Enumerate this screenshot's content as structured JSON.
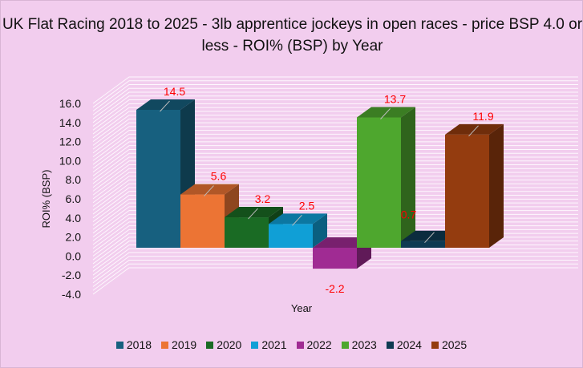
{
  "chart_data": {
    "type": "bar",
    "title": "UK Flat Racing 2018 to 2025 - 3lb apprentice jockeys in open races - price BSP 4.0 or less - ROI% (BSP) by Year",
    "xlabel": "Year",
    "ylabel": "ROI% (BSP)",
    "ylim": [
      -4,
      16
    ],
    "yticks": [
      "16.0",
      "14.0",
      "12.0",
      "10.0",
      "8.0",
      "6.0",
      "4.0",
      "2.0",
      "0.0",
      "-2.0",
      "-4.0"
    ],
    "grid": true,
    "three_d": true,
    "legend_position": "bottom",
    "categories": [
      "2018",
      "2019",
      "2020",
      "2021",
      "2022",
      "2023",
      "2024",
      "2025"
    ],
    "values": [
      14.5,
      5.6,
      3.2,
      2.5,
      -2.2,
      13.7,
      0.7,
      11.9
    ],
    "labels": [
      "14.5",
      "5.6",
      "3.2",
      "2.5",
      "-2.2",
      "13.7",
      "0.7",
      "11.9"
    ],
    "colors": [
      "#17607f",
      "#ec7434",
      "#1a6b24",
      "#109fd6",
      "#a02b93",
      "#4ea72e",
      "#0e3a52",
      "#943c0f"
    ],
    "label_color": "#ff0000",
    "background": "#f2cdee"
  }
}
